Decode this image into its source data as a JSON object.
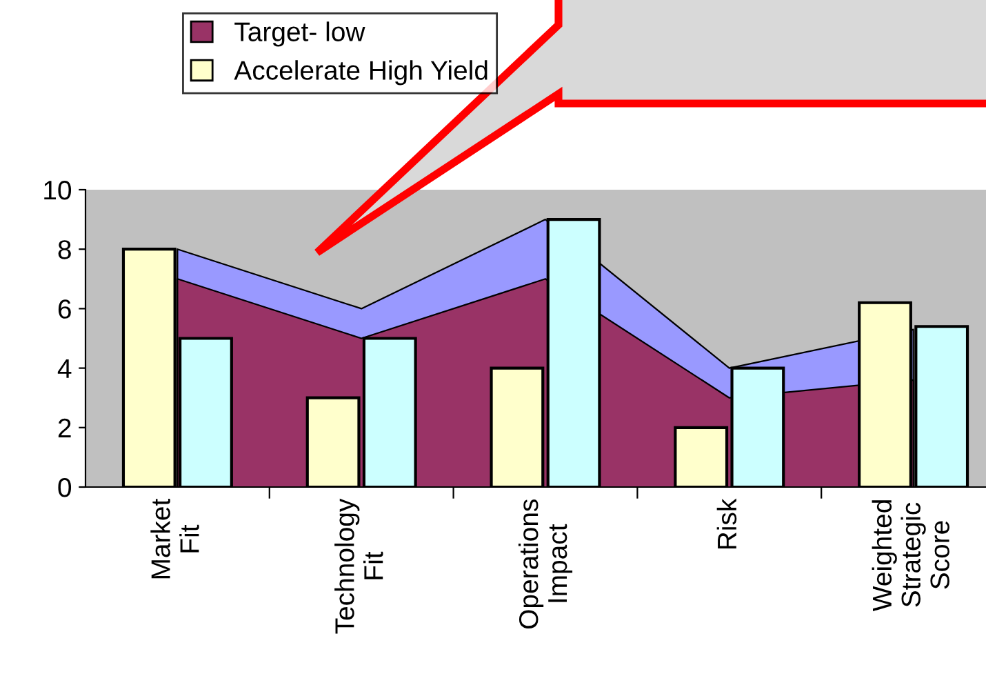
{
  "chart_data": {
    "type": "bar",
    "categories": [
      "Market Fit",
      "Technology Fit",
      "Operations Impact",
      "Risk",
      "Weighted Strategic Score"
    ],
    "series": [
      {
        "type": "area",
        "color": "#9999ff",
        "values": [
          8,
          6,
          9,
          4,
          5.3
        ]
      },
      {
        "type": "area",
        "name": "Target- low",
        "color": "#993366",
        "values": [
          7,
          5,
          7,
          3,
          3.6
        ]
      },
      {
        "name": "Accelerate High Yield",
        "color": "#ffffcc",
        "values": [
          8,
          3,
          4,
          2,
          6.2
        ]
      },
      {
        "color": "#ccffff",
        "values": [
          5,
          5,
          9,
          4,
          5.4
        ]
      }
    ],
    "ylim": [
      0,
      10
    ],
    "yticks": [
      0,
      2,
      4,
      6,
      8,
      10
    ],
    "grid": false,
    "legend": "top left"
  }
}
